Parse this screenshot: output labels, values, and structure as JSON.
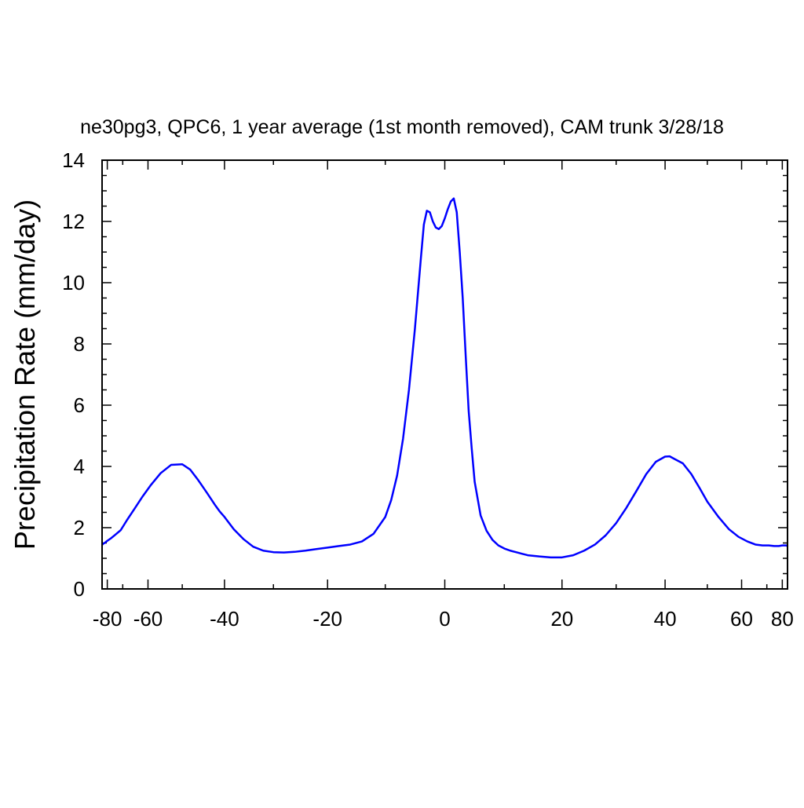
{
  "chart_data": {
    "type": "line",
    "title": "ne30pg3, QPC6, 1 year average (1st month removed), CAM trunk 3/28/18",
    "xlabel": "",
    "ylabel": "Precipitation Rate (mm/day)",
    "xlim": [
      -90,
      90
    ],
    "ylim": [
      0,
      14
    ],
    "grid": false,
    "x_tick_values": [
      -80,
      -60,
      -40,
      -20,
      0,
      20,
      40,
      60,
      80
    ],
    "x_tick_labels": [
      "-80",
      "-60",
      "-40",
      "-20",
      "0",
      "20",
      "40",
      "60",
      "80"
    ],
    "y_tick_values": [
      0,
      2,
      4,
      6,
      8,
      10,
      12,
      14
    ],
    "y_tick_labels": [
      "0",
      "2",
      "4",
      "6",
      "8",
      "10",
      "12",
      "14"
    ],
    "series": [
      {
        "color": "#0000ff",
        "x": [
          -90,
          -89,
          -87,
          -85,
          -83,
          -80,
          -77,
          -74,
          -71,
          -68,
          -65,
          -62,
          -59,
          -56,
          -53,
          -50,
          -48,
          -46,
          -44,
          -42,
          -41,
          -40,
          -38,
          -36,
          -34,
          -32,
          -30,
          -28,
          -26,
          -24,
          -22,
          -20,
          -18,
          -16,
          -14,
          -12,
          -10,
          -9,
          -8,
          -7,
          -6,
          -5,
          -4,
          -3.5,
          -3,
          -2.5,
          -2,
          -1.5,
          -1,
          -0.5,
          0,
          0.5,
          1,
          1.5,
          2,
          2.5,
          3,
          3.5,
          4,
          4.5,
          5,
          6,
          7,
          8,
          9,
          10,
          11,
          12,
          13,
          14,
          16,
          18,
          20,
          22,
          24,
          26,
          28,
          30,
          32,
          34,
          36,
          38,
          40,
          41,
          42,
          44,
          46,
          48,
          50,
          53,
          56,
          59,
          62,
          65,
          68,
          71,
          74,
          77,
          80,
          83,
          86,
          88,
          90
        ],
        "y": [
          1.45,
          1.45,
          1.45,
          1.48,
          1.5,
          1.57,
          1.65,
          1.77,
          1.92,
          2.25,
          2.6,
          3.0,
          3.4,
          3.78,
          4.05,
          4.07,
          3.9,
          3.55,
          3.15,
          2.72,
          2.52,
          2.35,
          1.95,
          1.63,
          1.38,
          1.25,
          1.2,
          1.19,
          1.21,
          1.25,
          1.3,
          1.35,
          1.4,
          1.45,
          1.55,
          1.8,
          2.35,
          2.9,
          3.7,
          4.9,
          6.5,
          8.5,
          10.8,
          11.9,
          12.35,
          12.3,
          12.0,
          11.8,
          11.75,
          11.85,
          12.1,
          12.4,
          12.65,
          12.75,
          12.3,
          11.0,
          9.5,
          7.6,
          5.8,
          4.6,
          3.5,
          2.4,
          1.9,
          1.6,
          1.42,
          1.32,
          1.25,
          1.2,
          1.15,
          1.1,
          1.06,
          1.03,
          1.03,
          1.1,
          1.25,
          1.45,
          1.75,
          2.15,
          2.65,
          3.2,
          3.75,
          4.15,
          4.32,
          4.33,
          4.25,
          4.1,
          3.75,
          3.3,
          2.85,
          2.35,
          1.95,
          1.7,
          1.55,
          1.45,
          1.42,
          1.42,
          1.4,
          1.4,
          1.42,
          1.42,
          1.42,
          1.4,
          1.38
        ]
      }
    ]
  }
}
